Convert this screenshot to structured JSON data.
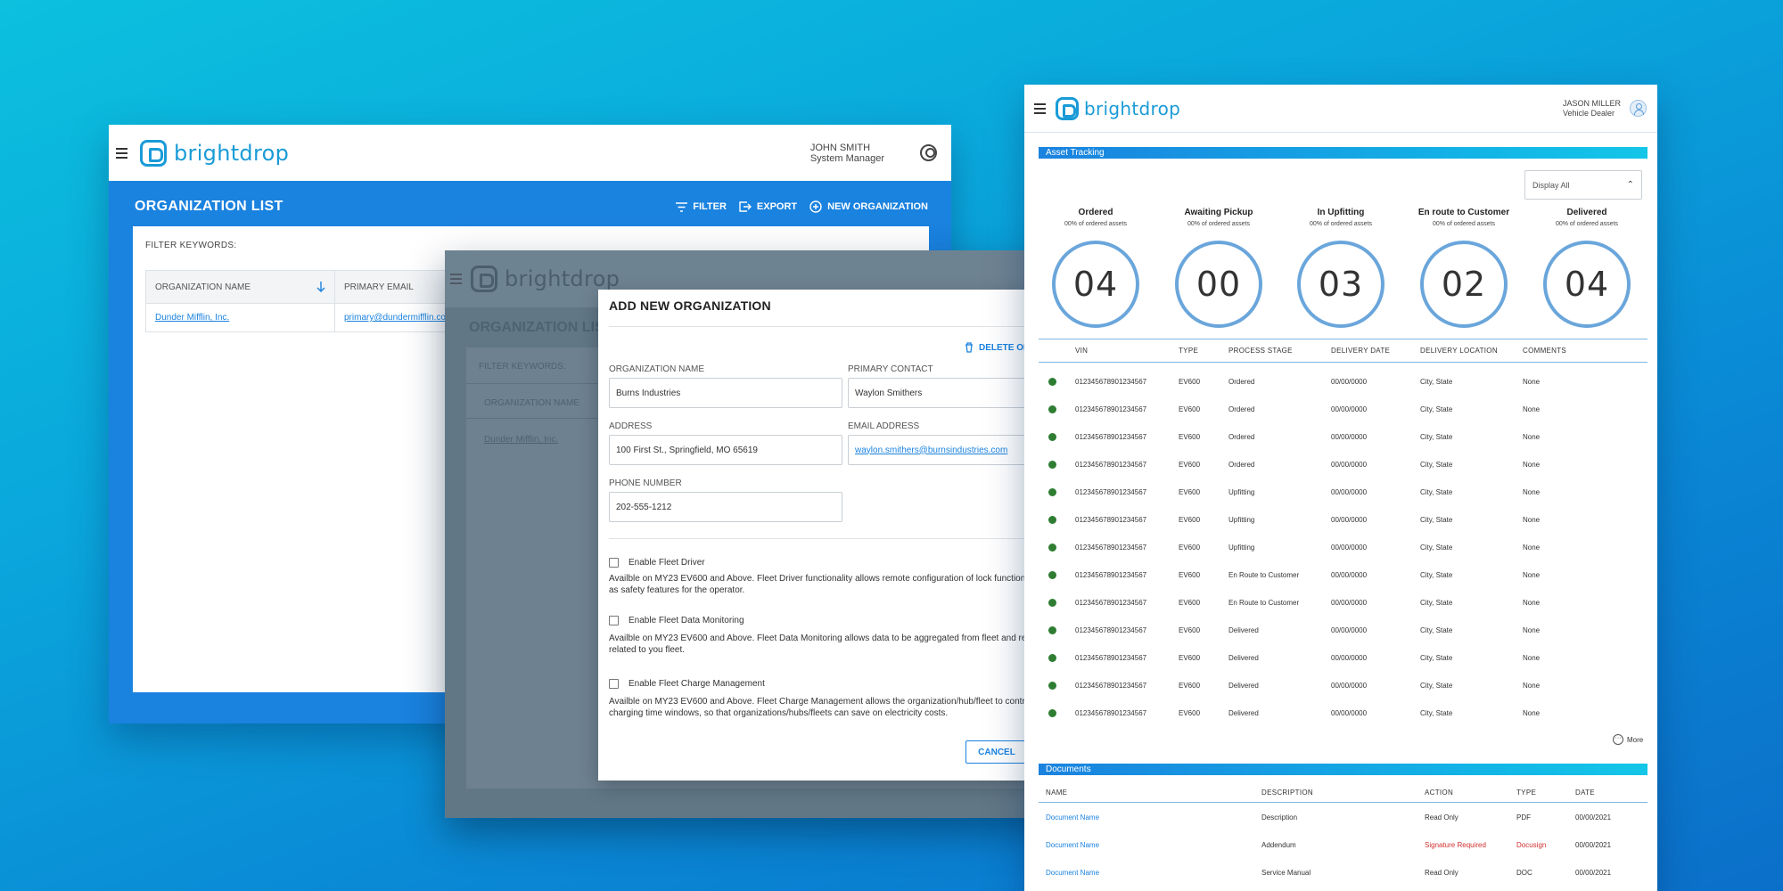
{
  "org_window": {
    "brand": "brightdrop",
    "user": {
      "name": "JOHN SMITH",
      "role": "System Manager"
    },
    "title": "ORGANIZATION LIST",
    "actions": {
      "filter": "FILTER",
      "export": "EXPORT",
      "new": "NEW ORGANIZATION"
    },
    "filter_label": "FILTER KEYWORDS:",
    "columns": [
      "ORGANIZATION NAME",
      "PRIMARY EMAIL"
    ],
    "rows": [
      {
        "name": "Dunder Mifflin, Inc.",
        "email": "primary@dundermifflin.com"
      }
    ]
  },
  "dimmed_window": {
    "brand": "brightdrop",
    "title": "ORGANIZATION LIST",
    "filter_label": "FILTER KEYWORDS:",
    "column": "ORGANIZATION NAME",
    "row": "Dunder Mifflin, Inc."
  },
  "modal": {
    "title": "ADD NEW ORGANIZATION",
    "delete_label": "DELETE ORGANIZATION",
    "fields": {
      "org_name": {
        "label": "ORGANIZATION NAME",
        "value": "Burns Industries"
      },
      "primary_contact": {
        "label": "PRIMARY CONTACT",
        "value": "Waylon Smithers"
      },
      "address": {
        "label": "ADDRESS",
        "value": "100 First St., Springfield, MO 65619"
      },
      "email": {
        "label": "EMAIL ADDRESS",
        "value": "waylon.smithers@burnsindustries.com"
      },
      "phone": {
        "label": "PHONE NUMBER",
        "value": "202-555-1212"
      }
    },
    "options": [
      {
        "label": "Enable Fleet Driver",
        "desc_1": "Availble on MY23 EV600 and Above. Fleet Driver functionality allows remote configuration of lock functions, as well",
        "desc_2": "as safety features for the operator."
      },
      {
        "label": "Enable Fleet Data Monitoring",
        "desc_1": "Availble on MY23 EV600 and Above. Fleet Data Monitoring allows data to be aggregated from fleet and reported",
        "desc_2": "related to you fleet."
      },
      {
        "label": "Enable Fleet Charge Management",
        "desc_1": "Availble on MY23 EV600 and Above. Fleet Charge Management allows the organization/hub/fleet to control",
        "desc_2": "charging time windows, so that organizations/hubs/fleets can save on electricity costs."
      }
    ],
    "cancel": "CANCEL"
  },
  "asset_window": {
    "brand": "brightdrop",
    "user": {
      "name": "JASON MILLER",
      "role": "Vehicle Dealer"
    },
    "section_title": "Asset Tracking",
    "display_select": "Display All",
    "stats": [
      {
        "label": "Ordered",
        "sub": "00% of ordered assets",
        "value": "04"
      },
      {
        "label": "Awaiting Pickup",
        "sub": "00% of ordered assets",
        "value": "00"
      },
      {
        "label": "In Upfitting",
        "sub": "00% of ordered assets",
        "value": "03"
      },
      {
        "label": "En route to Customer",
        "sub": "00% of ordered assets",
        "value": "02"
      },
      {
        "label": "Delivered",
        "sub": "00% of ordered assets",
        "value": "04"
      }
    ],
    "columns": [
      "VIN",
      "TYPE",
      "PROCESS STAGE",
      "DELIVERY DATE",
      "DELIVERY LOCATION",
      "COMMENTS"
    ],
    "rows": [
      {
        "vin": "012345678901234567",
        "type": "EV600",
        "stage": "Ordered",
        "date": "00/00/0000",
        "loc": "City, State",
        "comments": "None"
      },
      {
        "vin": "012345678901234567",
        "type": "EV600",
        "stage": "Ordered",
        "date": "00/00/0000",
        "loc": "City, State",
        "comments": "None"
      },
      {
        "vin": "012345678901234567",
        "type": "EV600",
        "stage": "Ordered",
        "date": "00/00/0000",
        "loc": "City, State",
        "comments": "None"
      },
      {
        "vin": "012345678901234567",
        "type": "EV600",
        "stage": "Ordered",
        "date": "00/00/0000",
        "loc": "City, State",
        "comments": "None"
      },
      {
        "vin": "012345678901234567",
        "type": "EV600",
        "stage": "Upfitting",
        "date": "00/00/0000",
        "loc": "City, State",
        "comments": "None"
      },
      {
        "vin": "012345678901234567",
        "type": "EV600",
        "stage": "Upfitting",
        "date": "00/00/0000",
        "loc": "City, State",
        "comments": "None"
      },
      {
        "vin": "012345678901234567",
        "type": "EV600",
        "stage": "Upfitting",
        "date": "00/00/0000",
        "loc": "City, State",
        "comments": "None"
      },
      {
        "vin": "012345678901234567",
        "type": "EV600",
        "stage": "En Route to Customer",
        "date": "00/00/0000",
        "loc": "City, State",
        "comments": "None"
      },
      {
        "vin": "012345678901234567",
        "type": "EV600",
        "stage": "En Route to Customer",
        "date": "00/00/0000",
        "loc": "City, State",
        "comments": "None"
      },
      {
        "vin": "012345678901234567",
        "type": "EV600",
        "stage": "Delivered",
        "date": "00/00/0000",
        "loc": "City, State",
        "comments": "None"
      },
      {
        "vin": "012345678901234567",
        "type": "EV600",
        "stage": "Delivered",
        "date": "00/00/0000",
        "loc": "City, State",
        "comments": "None"
      },
      {
        "vin": "012345678901234567",
        "type": "EV600",
        "stage": "Delivered",
        "date": "00/00/0000",
        "loc": "City, State",
        "comments": "None"
      },
      {
        "vin": "012345678901234567",
        "type": "EV600",
        "stage": "Delivered",
        "date": "00/00/0000",
        "loc": "City, State",
        "comments": "None"
      }
    ],
    "status_dot_color": "#2e7d32",
    "more": "More",
    "documents": {
      "title": "Documents",
      "columns": [
        "NAME",
        "DESCRIPTION",
        "ACTION",
        "TYPE",
        "DATE"
      ],
      "rows": [
        {
          "name": "Document Name",
          "desc": "Description",
          "action": "Read Only",
          "type": "PDF",
          "date": "00/00/2021",
          "alert": false
        },
        {
          "name": "Document Name",
          "desc": "Addendum",
          "action": "Signature Required",
          "type": "Docusign",
          "date": "00/00/2021",
          "alert": true
        },
        {
          "name": "Document Name",
          "desc": "Service Manual",
          "action": "Read Only",
          "type": "DOC",
          "date": "00/00/2021",
          "alert": false
        }
      ]
    }
  },
  "colors": {
    "accent": "#1a82df",
    "brand": "#1a9bd7",
    "alert": "#d32f2f",
    "ring": "#6aa6db"
  }
}
